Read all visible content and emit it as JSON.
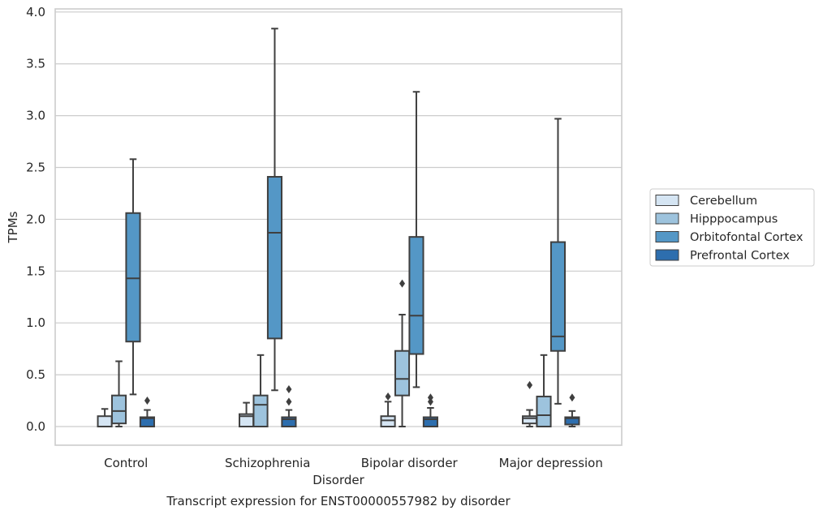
{
  "chart_data": {
    "type": "box",
    "title": "",
    "caption": "Transcript expression for ENST00000557982 by disorder",
    "xlabel": "Disorder",
    "ylabel": "TPMs",
    "ylim": [
      -0.18,
      4.03
    ],
    "yticks": [
      "0.0",
      "0.5",
      "1.0",
      "1.5",
      "2.0",
      "2.5",
      "3.0",
      "3.5",
      "4.0"
    ],
    "grid": "horizontal",
    "legend_position": "right",
    "categories": [
      "Control",
      "Schizophrenia",
      "Bipolar disorder",
      "Major depression"
    ],
    "series": [
      {
        "name": "Cerebellum",
        "color": "#d5e5f3",
        "boxes": [
          {
            "whislo": 0.0,
            "q1": 0.0,
            "med": 0.0,
            "q3": 0.1,
            "whishi": 0.17,
            "fliers": []
          },
          {
            "whislo": 0.0,
            "q1": 0.0,
            "med": 0.1,
            "q3": 0.12,
            "whishi": 0.23,
            "fliers": []
          },
          {
            "whislo": 0.0,
            "q1": 0.0,
            "med": 0.06,
            "q3": 0.1,
            "whishi": 0.24,
            "fliers": [
              0.29
            ]
          },
          {
            "whislo": 0.0,
            "q1": 0.03,
            "med": 0.08,
            "q3": 0.1,
            "whishi": 0.16,
            "fliers": [
              0.4
            ]
          }
        ]
      },
      {
        "name": "Hipppocampus",
        "color": "#9dc3dd",
        "boxes": [
          {
            "whislo": 0.0,
            "q1": 0.03,
            "med": 0.15,
            "q3": 0.3,
            "whishi": 0.63,
            "fliers": []
          },
          {
            "whislo": 0.0,
            "q1": 0.0,
            "med": 0.21,
            "q3": 0.3,
            "whishi": 0.69,
            "fliers": []
          },
          {
            "whislo": 0.0,
            "q1": 0.3,
            "med": 0.46,
            "q3": 0.73,
            "whishi": 1.08,
            "fliers": [
              1.38
            ]
          },
          {
            "whislo": 0.0,
            "q1": 0.0,
            "med": 0.11,
            "q3": 0.29,
            "whishi": 0.69,
            "fliers": []
          }
        ]
      },
      {
        "name": "Orbitofontal Cortex",
        "color": "#5497c6",
        "boxes": [
          {
            "whislo": 0.31,
            "q1": 0.82,
            "med": 1.43,
            "q3": 2.06,
            "whishi": 2.58,
            "fliers": []
          },
          {
            "whislo": 0.35,
            "q1": 0.85,
            "med": 1.87,
            "q3": 2.41,
            "whishi": 3.84,
            "fliers": []
          },
          {
            "whislo": 0.38,
            "q1": 0.7,
            "med": 1.07,
            "q3": 1.83,
            "whishi": 3.23,
            "fliers": []
          },
          {
            "whislo": 0.22,
            "q1": 0.73,
            "med": 0.87,
            "q3": 1.78,
            "whishi": 2.97,
            "fliers": []
          }
        ]
      },
      {
        "name": "Prefrontal Cortex",
        "color": "#2d6eae",
        "boxes": [
          {
            "whislo": 0.0,
            "q1": 0.0,
            "med": 0.08,
            "q3": 0.09,
            "whishi": 0.16,
            "fliers": [
              0.25
            ]
          },
          {
            "whislo": 0.0,
            "q1": 0.0,
            "med": 0.07,
            "q3": 0.09,
            "whishi": 0.16,
            "fliers": [
              0.24,
              0.36
            ]
          },
          {
            "whislo": 0.0,
            "q1": 0.0,
            "med": 0.07,
            "q3": 0.09,
            "whishi": 0.18,
            "fliers": [
              0.24,
              0.28
            ]
          },
          {
            "whislo": 0.0,
            "q1": 0.02,
            "med": 0.08,
            "q3": 0.09,
            "whishi": 0.15,
            "fliers": [
              0.28
            ]
          }
        ]
      }
    ]
  }
}
